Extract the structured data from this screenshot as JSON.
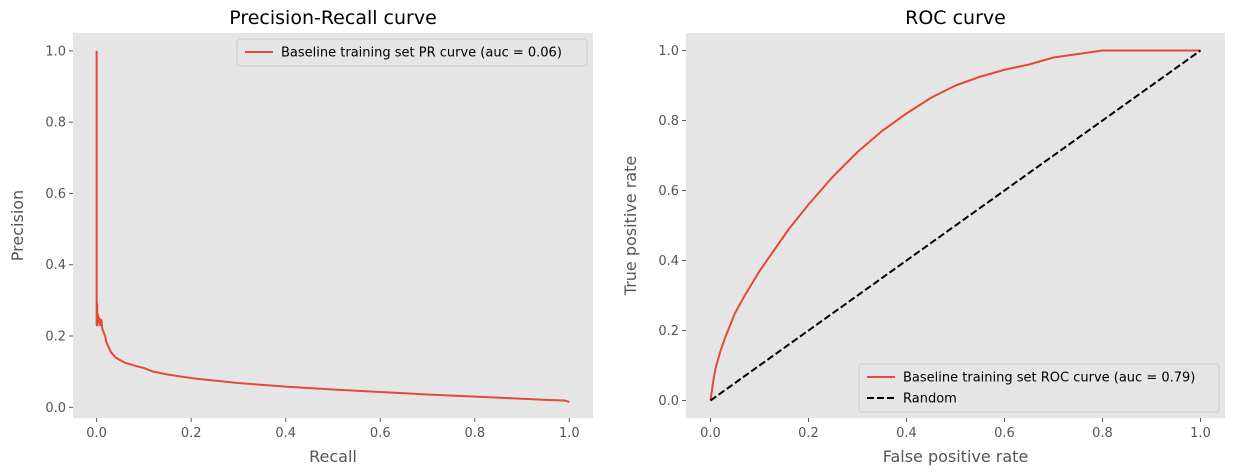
{
  "chart_data": [
    {
      "type": "line",
      "title": "Precision-Recall curve",
      "xlabel": "Recall",
      "ylabel": "Precision",
      "xlim": [
        -0.05,
        1.05
      ],
      "ylim": [
        -0.03,
        1.05
      ],
      "xticks": [
        "0.0",
        "0.2",
        "0.4",
        "0.6",
        "0.8",
        "1.0"
      ],
      "yticks": [
        "0.0",
        "0.2",
        "0.4",
        "0.6",
        "0.8",
        "1.0"
      ],
      "grid": false,
      "legend_position": "top-right",
      "series": [
        {
          "name": "Baseline training set PR curve (auc = 0.06)",
          "color": "#e24a33",
          "dash": "solid",
          "x": [
            0.0,
            0.0,
            0.001,
            0.002,
            0.003,
            0.004,
            0.006,
            0.008,
            0.01,
            0.012,
            0.015,
            0.018,
            0.02,
            0.025,
            0.03,
            0.04,
            0.05,
            0.06,
            0.08,
            0.1,
            0.12,
            0.15,
            0.2,
            0.25,
            0.3,
            0.4,
            0.5,
            0.6,
            0.7,
            0.8,
            0.9,
            0.95,
            0.99,
            1.0
          ],
          "y": [
            1.0,
            0.23,
            0.29,
            0.23,
            0.26,
            0.24,
            0.25,
            0.23,
            0.245,
            0.22,
            0.21,
            0.2,
            0.185,
            0.17,
            0.155,
            0.14,
            0.132,
            0.125,
            0.117,
            0.11,
            0.1,
            0.092,
            0.082,
            0.075,
            0.068,
            0.058,
            0.05,
            0.043,
            0.036,
            0.03,
            0.024,
            0.021,
            0.019,
            0.015
          ]
        }
      ]
    },
    {
      "type": "line",
      "title": "ROC curve",
      "xlabel": "False positive rate",
      "ylabel": "True positive rate",
      "xlim": [
        -0.05,
        1.05
      ],
      "ylim": [
        -0.05,
        1.05
      ],
      "xticks": [
        "0.0",
        "0.2",
        "0.4",
        "0.6",
        "0.8",
        "1.0"
      ],
      "yticks": [
        "0.0",
        "0.2",
        "0.4",
        "0.6",
        "0.8",
        "1.0"
      ],
      "grid": false,
      "legend_position": "bottom-right",
      "series": [
        {
          "name": "Baseline training set ROC curve (auc = 0.79)",
          "color": "#e24a33",
          "dash": "solid",
          "x": [
            0.0,
            0.005,
            0.01,
            0.02,
            0.03,
            0.05,
            0.07,
            0.1,
            0.13,
            0.16,
            0.2,
            0.25,
            0.3,
            0.35,
            0.4,
            0.45,
            0.5,
            0.55,
            0.6,
            0.65,
            0.7,
            0.75,
            0.8,
            0.85,
            0.9,
            0.95,
            1.0
          ],
          "y": [
            0.0,
            0.05,
            0.09,
            0.14,
            0.18,
            0.25,
            0.3,
            0.37,
            0.43,
            0.49,
            0.56,
            0.64,
            0.71,
            0.77,
            0.82,
            0.865,
            0.9,
            0.925,
            0.945,
            0.96,
            0.98,
            0.99,
            1.0,
            1.0,
            1.0,
            1.0,
            1.0
          ]
        },
        {
          "name": "Random",
          "color": "#000000",
          "dash": "dashed",
          "x": [
            0.0,
            1.0
          ],
          "y": [
            0.0,
            1.0
          ]
        }
      ]
    }
  ]
}
